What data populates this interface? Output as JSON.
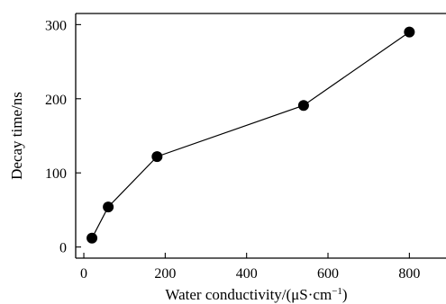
{
  "chart_data": {
    "type": "line",
    "title": "",
    "xlabel": "Water conductivity/(μS·cm",
    "xlabel_sup": "−1",
    "xlabel_close": ")",
    "ylabel": "Decay time/ns",
    "xlim": [
      -20,
      890
    ],
    "ylim": [
      -15,
      315
    ],
    "xticks": [
      0,
      200,
      400,
      600,
      800
    ],
    "yticks": [
      0,
      100,
      200,
      300
    ],
    "xtick_labels": [
      "0",
      "200",
      "400",
      "600",
      "800"
    ],
    "ytick_labels": [
      "0",
      "100",
      "200",
      "300"
    ],
    "grid": false,
    "legend": "none",
    "series": [
      {
        "x": [
          20,
          60,
          180,
          540,
          800
        ],
        "y": [
          12,
          54,
          122,
          191,
          290
        ],
        "marker": "circle",
        "color": "#000000"
      }
    ]
  }
}
